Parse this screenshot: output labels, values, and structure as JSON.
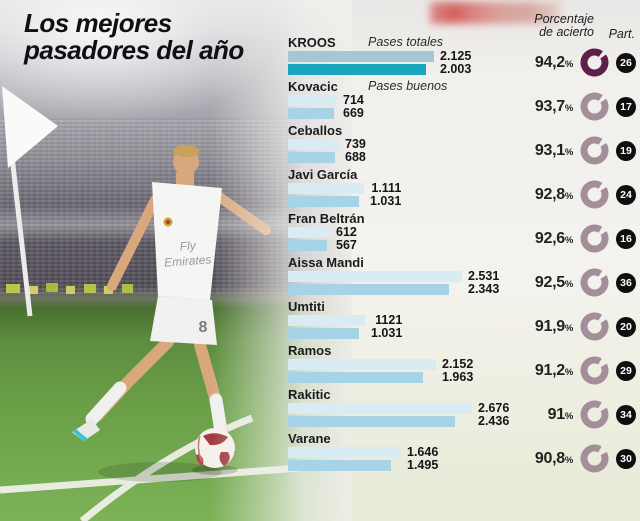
{
  "title": {
    "line1": "Los mejores",
    "line2": "pasadores del año"
  },
  "header": {
    "accuracy_line1": "Porcentaje",
    "accuracy_line2": "de acierto",
    "participation": "Part."
  },
  "legend": {
    "total": "Pases totales",
    "good": "Pases buenos"
  },
  "units": {
    "accuracy": "%"
  },
  "photo": {
    "jersey_line1": "Fly",
    "jersey_line2": "Emirates",
    "shirt_number": "8"
  },
  "colors": {
    "bar_total": "#d9ebf3",
    "bar_good": "#a7d3e6",
    "bar_total_highlight": "#a6c6d4",
    "bar_good_highlight": "#1ba5bc",
    "ring": "#a48e9a",
    "ring_highlight": "#5e1e47",
    "badge_bg": "#0e0e0e",
    "title_text": "#0f0f14"
  },
  "chart_data": {
    "type": "bar",
    "orientation": "horizontal",
    "series_labels": [
      "Pases totales",
      "Pases buenos"
    ],
    "scale_max": 2676,
    "players": [
      {
        "name": "KROOS",
        "total_label": "2.125",
        "good_label": "2.003",
        "total": 2125,
        "good": 2003,
        "accuracy_label": "94,2",
        "accuracy": 94.2,
        "matches": "26",
        "highlight": true
      },
      {
        "name": "Kovacic",
        "total_label": "714",
        "good_label": "669",
        "total": 714,
        "good": 669,
        "accuracy_label": "93,7",
        "accuracy": 93.7,
        "matches": "17",
        "highlight": false
      },
      {
        "name": "Ceballos",
        "total_label": "739",
        "good_label": "688",
        "total": 739,
        "good": 688,
        "accuracy_label": "93,1",
        "accuracy": 93.1,
        "matches": "19",
        "highlight": false
      },
      {
        "name": "Javi García",
        "total_label": "1.111",
        "good_label": "1.031",
        "total": 1111,
        "good": 1031,
        "accuracy_label": "92,8",
        "accuracy": 92.8,
        "matches": "24",
        "highlight": false
      },
      {
        "name": "Fran Beltrán",
        "total_label": "612",
        "good_label": "567",
        "total": 612,
        "good": 567,
        "accuracy_label": "92,6",
        "accuracy": 92.6,
        "matches": "16",
        "highlight": false
      },
      {
        "name": "Aissa Mandi",
        "total_label": "2.531",
        "good_label": "2.343",
        "total": 2531,
        "good": 2343,
        "accuracy_label": "92,5",
        "accuracy": 92.5,
        "matches": "36",
        "highlight": false
      },
      {
        "name": "Umtiti",
        "total_label": "1121",
        "good_label": "1.031",
        "total": 1121,
        "good": 1031,
        "accuracy_label": "91,9",
        "accuracy": 91.9,
        "matches": "20",
        "highlight": false
      },
      {
        "name": "Ramos",
        "total_label": "2.152",
        "good_label": "1.963",
        "total": 2152,
        "good": 1963,
        "accuracy_label": "91,2",
        "accuracy": 91.2,
        "matches": "29",
        "highlight": false
      },
      {
        "name": "Rakitic",
        "total_label": "2.676",
        "good_label": "2.436",
        "total": 2676,
        "good": 2436,
        "accuracy_label": "91",
        "accuracy": 91.0,
        "matches": "34",
        "highlight": false
      },
      {
        "name": "Varane",
        "total_label": "1.646",
        "good_label": "1.495",
        "total": 1646,
        "good": 1495,
        "accuracy_label": "90,8",
        "accuracy": 90.8,
        "matches": "30",
        "highlight": false
      }
    ]
  }
}
